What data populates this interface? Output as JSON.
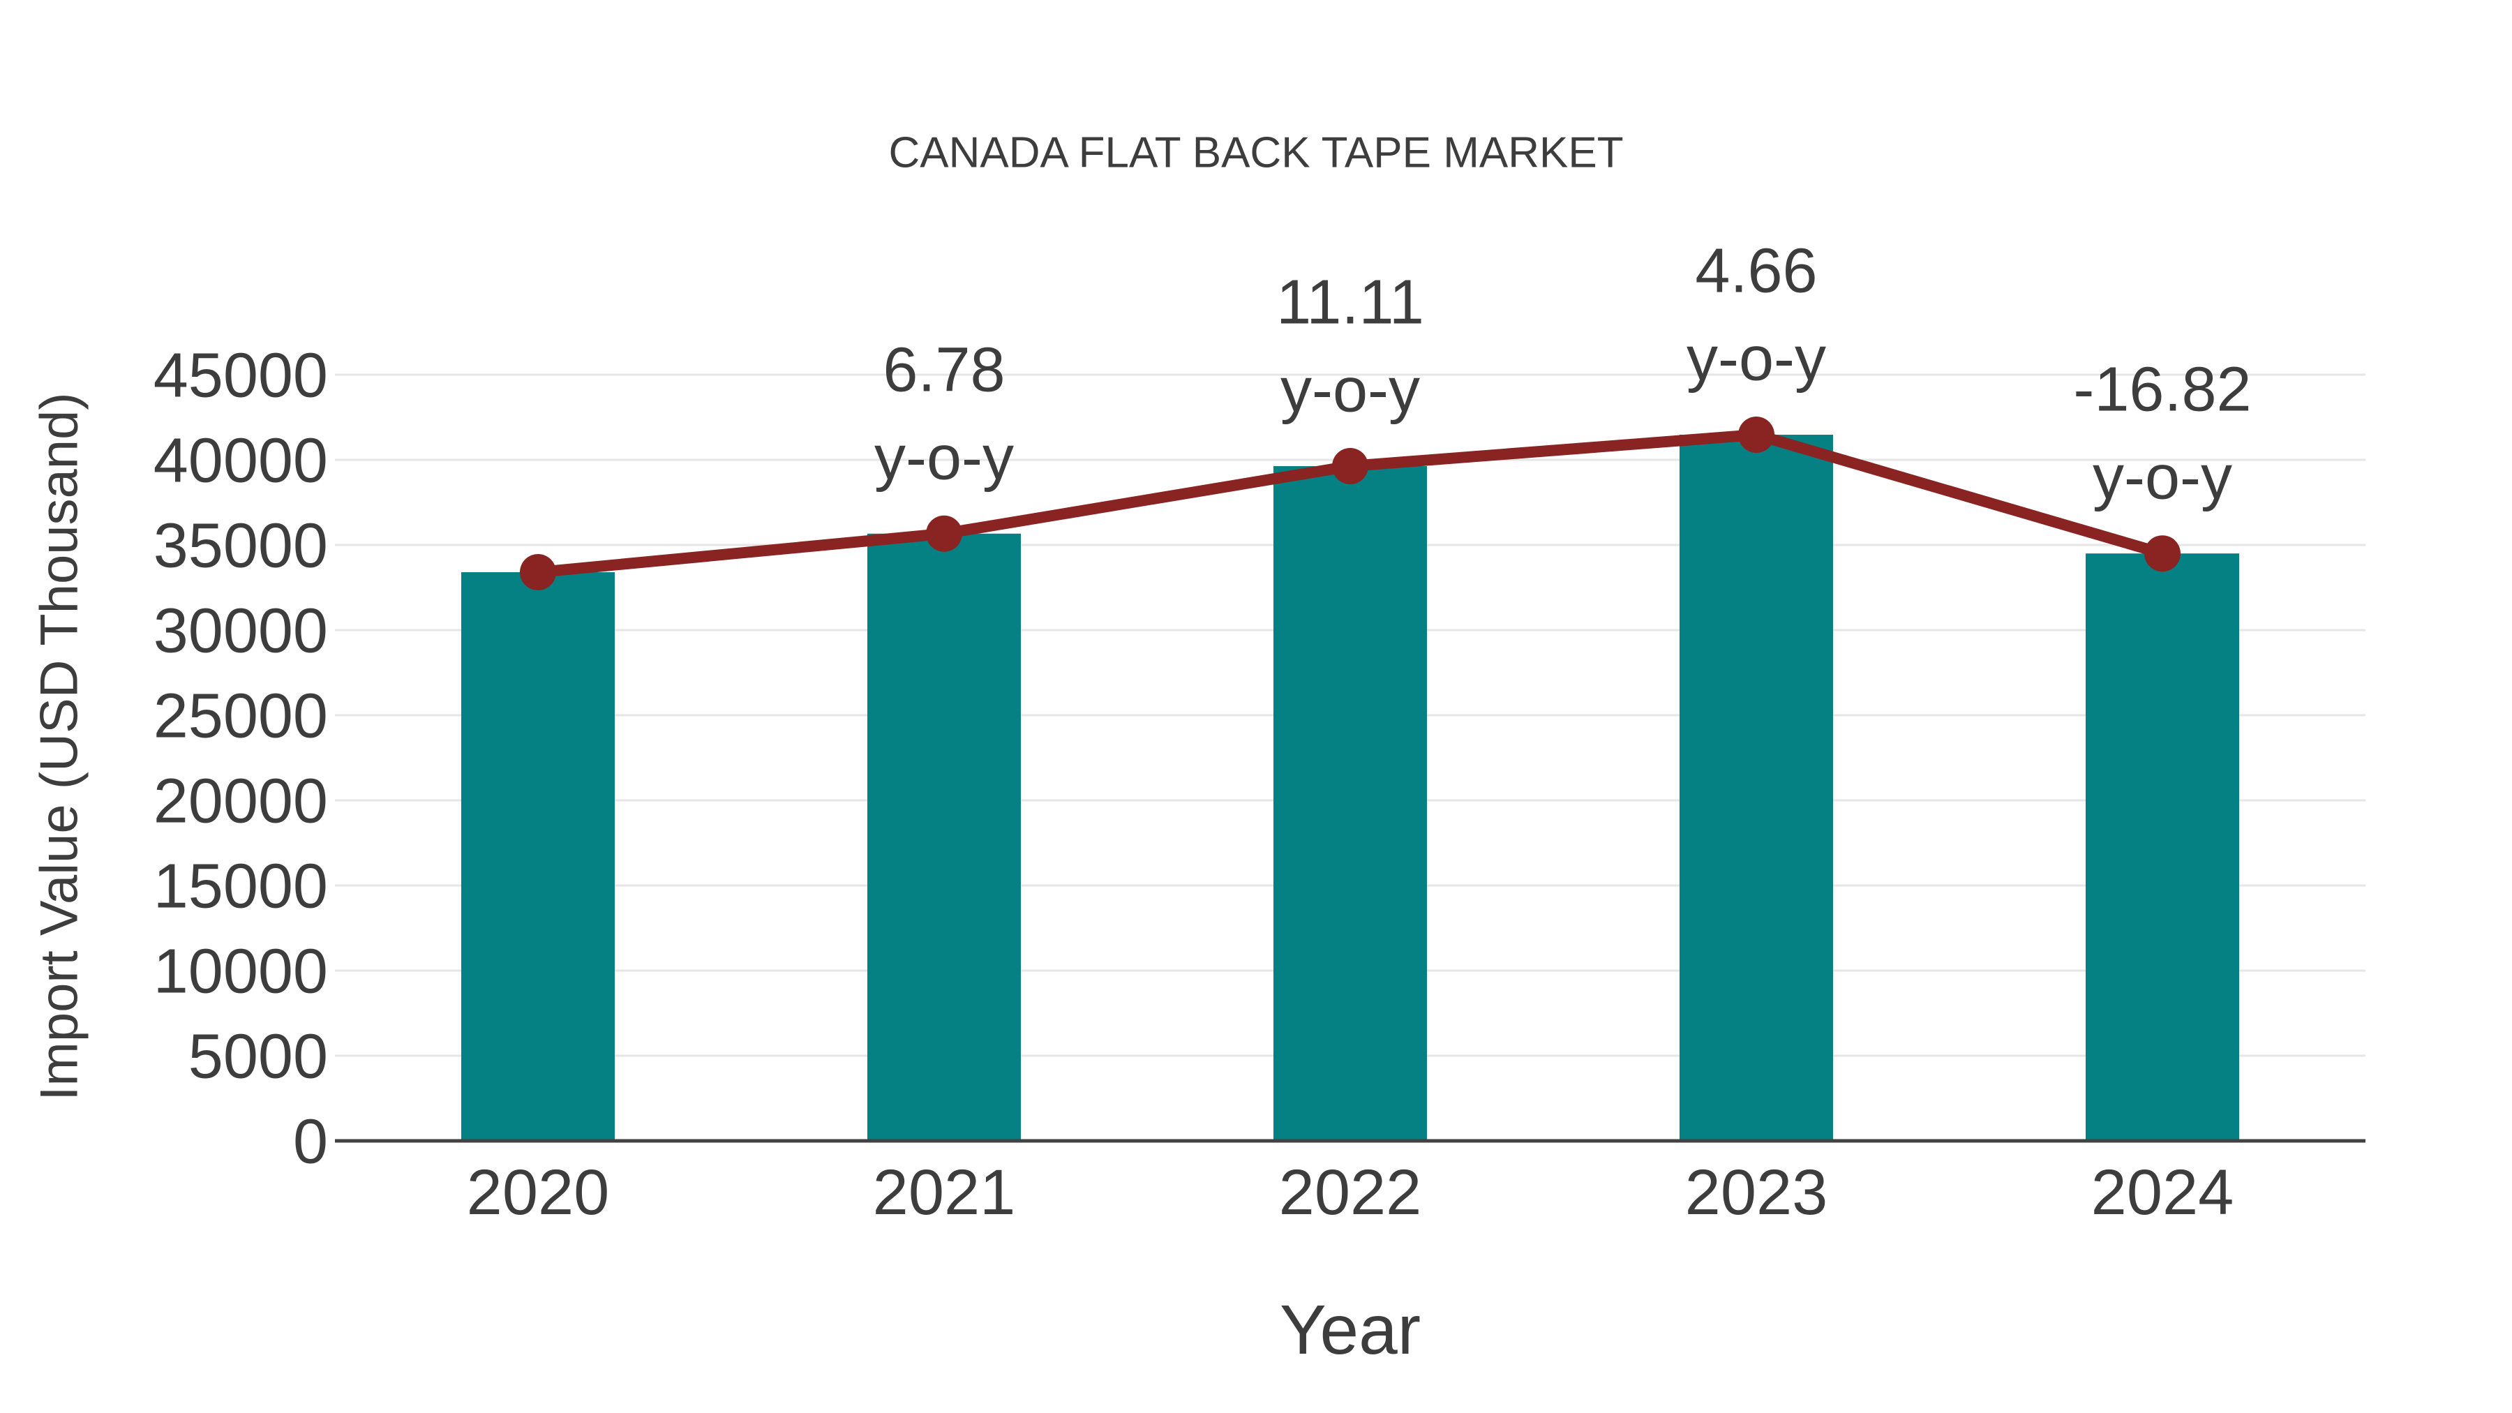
{
  "page": {
    "background": "#ffffff"
  },
  "chart_data": {
    "type": "bar",
    "combo": "bars with overlaid line and point markers",
    "title": "CANADA FLAT BACK TAPE MARKET",
    "xlabel": "Year",
    "ylabel": "Import Value (USD Thousand)",
    "categories": [
      "2020",
      "2021",
      "2022",
      "2023",
      "2024"
    ],
    "series": [
      {
        "name": "Import Value (USD Thousand)",
        "type": "bar",
        "values": [
          33400,
          35665,
          39630,
          41475,
          34500
        ],
        "color": "#058083",
        "note": "values estimated from gridlines"
      },
      {
        "name": "y-o-y trend line",
        "type": "line",
        "values": [
          33400,
          35665,
          39630,
          41475,
          34500
        ],
        "color": "#8A2423",
        "markers": true
      }
    ],
    "annotations": [
      {
        "category": "2021",
        "lines": [
          "6.78",
          "y-o-y"
        ]
      },
      {
        "category": "2022",
        "lines": [
          "11.11",
          "y-o-y"
        ]
      },
      {
        "category": "2023",
        "lines": [
          "4.66",
          "y-o-y"
        ]
      },
      {
        "category": "2024",
        "lines": [
          "-16.82",
          "y-o-y"
        ]
      }
    ],
    "yoy_percent": {
      "2021": 6.78,
      "2022": 11.11,
      "2023": 4.66,
      "2024": -16.82
    },
    "yticks": [
      0,
      5000,
      10000,
      15000,
      20000,
      25000,
      30000,
      35000,
      40000,
      45000
    ],
    "ylim": [
      0,
      45000
    ],
    "grid": "horizontal only",
    "legend": "none",
    "colors": {
      "text": "#3d3d3d",
      "gridline": "#e6e6e6",
      "axis_line": "#424242",
      "bar": "#058083",
      "line": "#8A2423"
    }
  }
}
